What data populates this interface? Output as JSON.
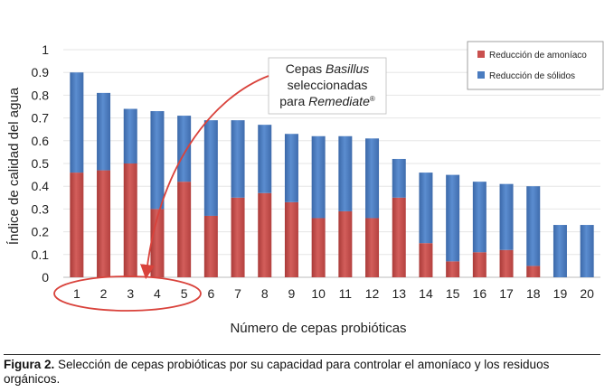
{
  "chart_data": {
    "type": "bar",
    "stacked": true,
    "categories": [
      "1",
      "2",
      "3",
      "4",
      "5",
      "6",
      "7",
      "8",
      "9",
      "10",
      "11",
      "12",
      "13",
      "14",
      "15",
      "16",
      "17",
      "18",
      "19",
      "20"
    ],
    "series": [
      {
        "name": "Reducción de amoníaco",
        "color": "#c9504e",
        "values": [
          0.46,
          0.47,
          0.5,
          0.3,
          0.42,
          0.27,
          0.35,
          0.37,
          0.33,
          0.26,
          0.29,
          0.26,
          0.35,
          0.15,
          0.07,
          0.11,
          0.12,
          0.05,
          0.0,
          0.0
        ]
      },
      {
        "name": "Reducción de sólidos",
        "color": "#4a7cc0",
        "values": [
          0.44,
          0.34,
          0.24,
          0.43,
          0.29,
          0.42,
          0.34,
          0.3,
          0.3,
          0.36,
          0.33,
          0.35,
          0.17,
          0.31,
          0.38,
          0.31,
          0.29,
          0.35,
          0.23,
          0.23
        ]
      }
    ],
    "ylabel": "Índice de calidad del agua",
    "xlabel": "Número de cepas probióticas",
    "ylim": [
      0,
      1
    ],
    "yticks": [
      "0",
      "0.1",
      "0.2",
      "0.3",
      "0.4",
      "0.5",
      "0.6",
      "0.7",
      "0.8",
      "0.9",
      "1"
    ],
    "legend_position": "top-right",
    "annotation": {
      "line1": "Cepas ",
      "line1_italic": "Basillus",
      "line2": "seleccionadas",
      "line3": "para ",
      "line3_italic": "Remediate",
      "line3_sup": "®",
      "highlighted_categories": [
        "1",
        "2",
        "3",
        "4",
        "5"
      ]
    }
  },
  "caption": {
    "label": "Figura 2.",
    "text": " Selección de cepas probióticas por su capacidad para controlar el amoníaco y los residuos orgánicos."
  }
}
